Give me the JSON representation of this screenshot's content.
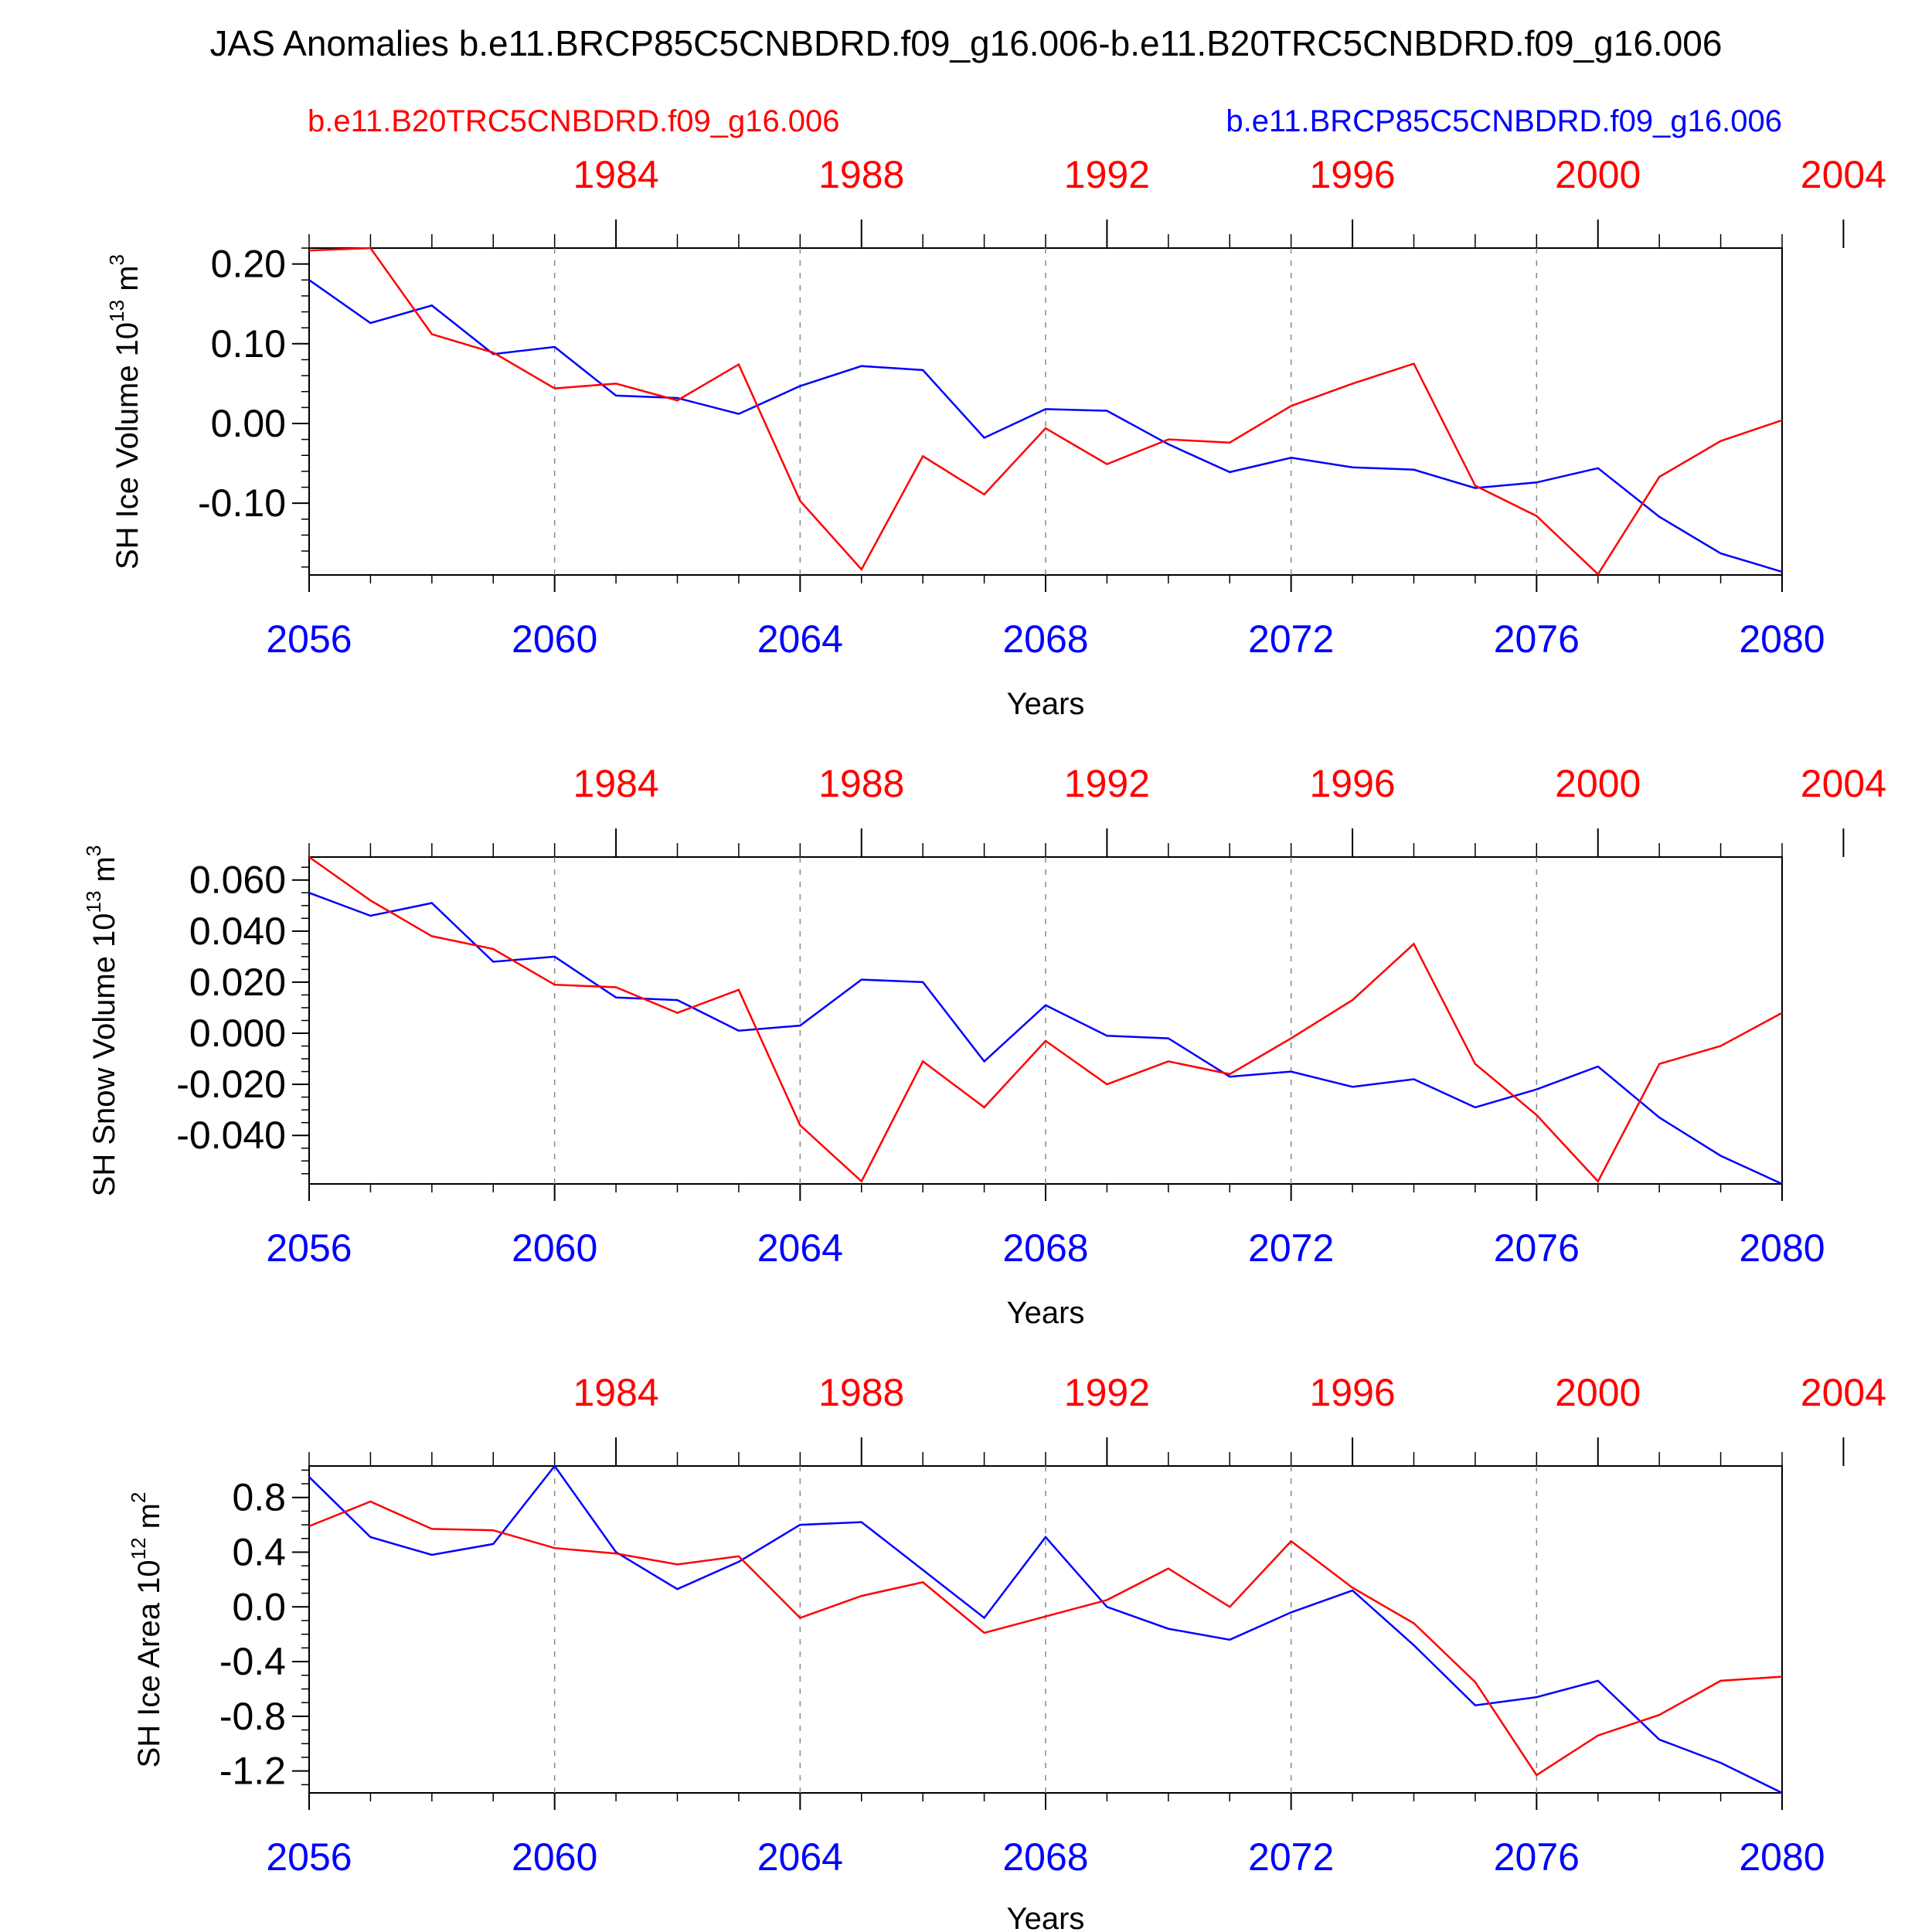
{
  "title": "JAS Anomalies b.e11.BRCP85C5CNBDRD.f09_g16.006-b.e11.B20TRC5CNBDRD.f09_g16.006",
  "legend": {
    "left": "b.e11.B20TRC5CNBDRD.f09_g16.006",
    "right": "b.e11.BRCP85C5CNBDRD.f09_g16.006"
  },
  "colors": {
    "hist": "#ff0000",
    "future": "#0000ff",
    "axis": "#000000",
    "grid": "#888888"
  },
  "chart_data": [
    {
      "type": "line",
      "ylabel": "SH Ice Volume 10",
      "ylabel_exp": "13",
      "ylabel_unit": " m",
      "ylabel_unit_exp": "3",
      "xlabel": "Years",
      "ylim": [
        -0.19,
        0.22
      ],
      "yticks": [
        -0.1,
        0.0,
        0.1,
        0.2
      ],
      "ytick_labels": [
        "-0.10",
        "0.00",
        "0.10",
        "0.20"
      ],
      "yminor_step": 0.02,
      "bottom_axis": {
        "range": [
          2056,
          2080
        ],
        "ticks": [
          "2056",
          "2060",
          "2064",
          "2068",
          "2072",
          "2076",
          "2080"
        ]
      },
      "top_axis": {
        "range": [
          1979,
          2003
        ],
        "ticks": [
          "1984",
          "1988",
          "1992",
          "1996",
          "2000",
          "2004"
        ]
      },
      "x": [
        2056,
        2057,
        2058,
        2059,
        2060,
        2061,
        2062,
        2063,
        2064,
        2065,
        2066,
        2067,
        2068,
        2069,
        2070,
        2071,
        2072,
        2073,
        2074,
        2075,
        2076,
        2077,
        2078,
        2079,
        2080
      ],
      "series": [
        {
          "name": "b.e11.BRCP85C5CNBDRD.f09_g16.006",
          "color": "#0000ff",
          "values": [
            0.18,
            0.126,
            0.148,
            0.087,
            0.096,
            0.035,
            0.032,
            0.012,
            0.047,
            0.072,
            0.067,
            -0.018,
            0.018,
            0.016,
            -0.026,
            -0.061,
            -0.043,
            -0.055,
            -0.058,
            -0.081,
            -0.074,
            -0.056,
            -0.117,
            -0.163,
            -0.186
          ]
        },
        {
          "name": "b.e11.B20TRC5CNBDRD.f09_g16.006",
          "color": "#ff0000",
          "values": [
            0.217,
            0.22,
            0.112,
            0.089,
            0.044,
            0.05,
            0.029,
            0.074,
            -0.097,
            -0.183,
            -0.041,
            -0.089,
            -0.006,
            -0.051,
            -0.02,
            -0.024,
            0.022,
            0.05,
            0.075,
            -0.078,
            -0.116,
            -0.189,
            -0.067,
            -0.022,
            0.004
          ]
        }
      ]
    },
    {
      "type": "line",
      "ylabel": "SH Snow Volume 10",
      "ylabel_exp": "13",
      "ylabel_unit": " m",
      "ylabel_unit_exp": "3",
      "xlabel": "Years",
      "ylim": [
        -0.059,
        0.069
      ],
      "yticks": [
        -0.04,
        -0.02,
        0.0,
        0.02,
        0.04,
        0.06
      ],
      "ytick_labels": [
        "-0.040",
        "-0.020",
        "0.000",
        "0.020",
        "0.040",
        "0.060"
      ],
      "yminor_step": 0.005,
      "bottom_axis": {
        "range": [
          2056,
          2080
        ],
        "ticks": [
          "2056",
          "2060",
          "2064",
          "2068",
          "2072",
          "2076",
          "2080"
        ]
      },
      "top_axis": {
        "range": [
          1979,
          2003
        ],
        "ticks": [
          "1984",
          "1988",
          "1992",
          "1996",
          "2000",
          "2004"
        ]
      },
      "x": [
        2056,
        2057,
        2058,
        2059,
        2060,
        2061,
        2062,
        2063,
        2064,
        2065,
        2066,
        2067,
        2068,
        2069,
        2070,
        2071,
        2072,
        2073,
        2074,
        2075,
        2076,
        2077,
        2078,
        2079,
        2080
      ],
      "series": [
        {
          "name": "b.e11.BRCP85C5CNBDRD.f09_g16.006",
          "color": "#0000ff",
          "values": [
            0.055,
            0.046,
            0.051,
            0.028,
            0.03,
            0.014,
            0.013,
            0.001,
            0.003,
            0.021,
            0.02,
            -0.011,
            0.011,
            -0.001,
            -0.002,
            -0.017,
            -0.015,
            -0.021,
            -0.018,
            -0.029,
            -0.022,
            -0.013,
            -0.033,
            -0.048,
            -0.059
          ]
        },
        {
          "name": "b.e11.B20TRC5CNBDRD.f09_g16.006",
          "color": "#ff0000",
          "values": [
            0.069,
            0.052,
            0.038,
            0.033,
            0.019,
            0.018,
            0.008,
            0.017,
            -0.036,
            -0.058,
            -0.011,
            -0.029,
            -0.003,
            -0.02,
            -0.011,
            -0.016,
            -0.002,
            0.013,
            0.035,
            -0.012,
            -0.032,
            -0.058,
            -0.012,
            -0.005,
            0.008
          ]
        }
      ]
    },
    {
      "type": "line",
      "ylabel": "SH Ice Area 10",
      "ylabel_exp": "12",
      "ylabel_unit": " m",
      "ylabel_unit_exp": "2",
      "xlabel": "Years",
      "ylim": [
        -1.36,
        1.03
      ],
      "yticks": [
        -1.2,
        -0.8,
        -0.4,
        0.0,
        0.4,
        0.8
      ],
      "ytick_labels": [
        "-1.2",
        "-0.8",
        "-0.4",
        "0.0",
        "0.4",
        "0.8"
      ],
      "yminor_step": 0.1,
      "bottom_axis": {
        "range": [
          2056,
          2080
        ],
        "ticks": [
          "2056",
          "2060",
          "2064",
          "2068",
          "2072",
          "2076",
          "2080"
        ]
      },
      "top_axis": {
        "range": [
          1979,
          2003
        ],
        "ticks": [
          "1984",
          "1988",
          "1992",
          "1996",
          "2000",
          "2004"
        ]
      },
      "x": [
        2056,
        2057,
        2058,
        2059,
        2060,
        2061,
        2062,
        2063,
        2064,
        2065,
        2066,
        2067,
        2068,
        2069,
        2070,
        2071,
        2072,
        2073,
        2074,
        2075,
        2076,
        2077,
        2078,
        2079,
        2080
      ],
      "series": [
        {
          "name": "b.e11.BRCP85C5CNBDRD.f09_g16.006",
          "color": "#0000ff",
          "values": [
            0.95,
            0.51,
            0.38,
            0.46,
            1.03,
            0.4,
            0.13,
            0.33,
            0.6,
            0.62,
            0.27,
            -0.08,
            0.51,
            0.0,
            -0.16,
            -0.24,
            -0.04,
            0.12,
            -0.28,
            -0.72,
            -0.66,
            -0.54,
            -0.97,
            -1.14,
            -1.36
          ]
        },
        {
          "name": "b.e11.B20TRC5CNBDRD.f09_g16.006",
          "color": "#ff0000",
          "values": [
            0.59,
            0.77,
            0.57,
            0.56,
            0.43,
            0.39,
            0.31,
            0.37,
            -0.08,
            0.08,
            0.18,
            -0.19,
            -0.07,
            0.05,
            0.28,
            0.0,
            0.48,
            0.14,
            -0.12,
            -0.55,
            -1.23,
            -0.94,
            -0.79,
            -0.54,
            -0.51
          ]
        }
      ]
    }
  ]
}
